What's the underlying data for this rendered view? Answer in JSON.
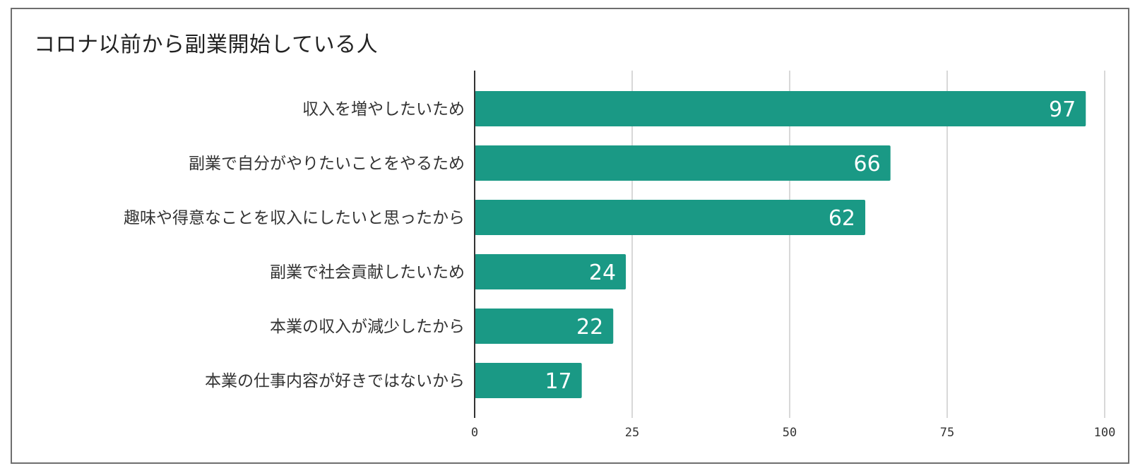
{
  "chart_data": {
    "type": "bar",
    "orientation": "horizontal",
    "title": "コロナ以前から副業開始している人",
    "categories": [
      "収入を増やしたいため",
      "副業で自分がやりたいことをやるため",
      "趣味や得意なことを収入にしたいと思ったから",
      "副業で社会貢献したいため",
      "本業の収入が減少したから",
      "本業の仕事内容が好きではないから"
    ],
    "values": [
      97,
      66,
      62,
      24,
      22,
      17
    ],
    "data_labels": [
      "97",
      "66",
      "62",
      "24",
      "22",
      "17"
    ],
    "xlim": [
      0,
      100
    ],
    "xticks": [
      0,
      25,
      50,
      75,
      100
    ],
    "xtick_labels": [
      "0",
      "25",
      "50",
      "75",
      "100"
    ],
    "grid": true,
    "legend": "none",
    "bar_color": "#1a9985",
    "grid_color": "#cccccc",
    "axis_color": "#333333"
  }
}
